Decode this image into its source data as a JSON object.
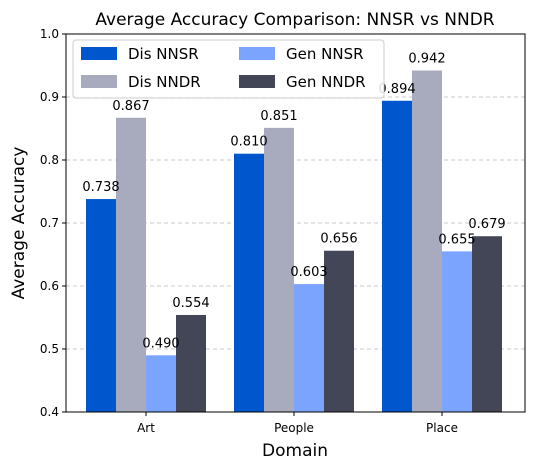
{
  "chart_data": {
    "type": "bar",
    "title": "Average Accuracy Comparison: NNSR vs NNDR",
    "xlabel": "Domain",
    "ylabel": "Average Accuracy",
    "categories": [
      "Art",
      "People",
      "Place"
    ],
    "ylim": [
      0.4,
      1.0
    ],
    "yticks": [
      "0.4",
      "0.5",
      "0.6",
      "0.7",
      "0.8",
      "0.9",
      "1.0"
    ],
    "grid": "horizontal dashed",
    "legend_position": "top-left",
    "legend_columns": 2,
    "series": [
      {
        "name": "Dis NNSR",
        "color": "#0056cc",
        "values": [
          0.738,
          0.81,
          0.894
        ],
        "labels": [
          "0.738",
          "0.810",
          "0.894"
        ]
      },
      {
        "name": "Dis NNDR",
        "color": "#a8abbd",
        "values": [
          0.867,
          0.851,
          0.942
        ],
        "labels": [
          "0.867",
          "0.851",
          "0.942"
        ]
      },
      {
        "name": "Gen NNSR",
        "color": "#7ba4fe",
        "values": [
          0.49,
          0.603,
          0.655
        ],
        "labels": [
          "0.490",
          "0.603",
          "0.655"
        ]
      },
      {
        "name": "Gen NNDR",
        "color": "#434656",
        "values": [
          0.554,
          0.656,
          0.679
        ],
        "labels": [
          "0.554",
          "0.656",
          "0.679"
        ]
      }
    ]
  }
}
